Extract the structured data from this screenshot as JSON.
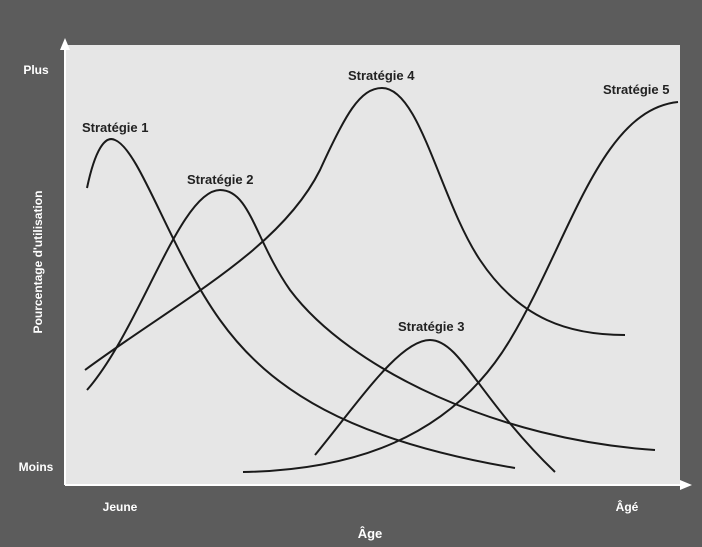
{
  "axes": {
    "y_label": "Pourcentage d'utilisation",
    "y_top": "Plus",
    "y_bottom": "Moins",
    "x_label": "Âge",
    "x_left": "Jeune",
    "x_right": "Âgé"
  },
  "curves": [
    {
      "label": "Stratégie 1"
    },
    {
      "label": "Stratégie 2"
    },
    {
      "label": "Stratégie 3"
    },
    {
      "label": "Stratégie 4"
    },
    {
      "label": "Stratégie 5"
    }
  ]
}
